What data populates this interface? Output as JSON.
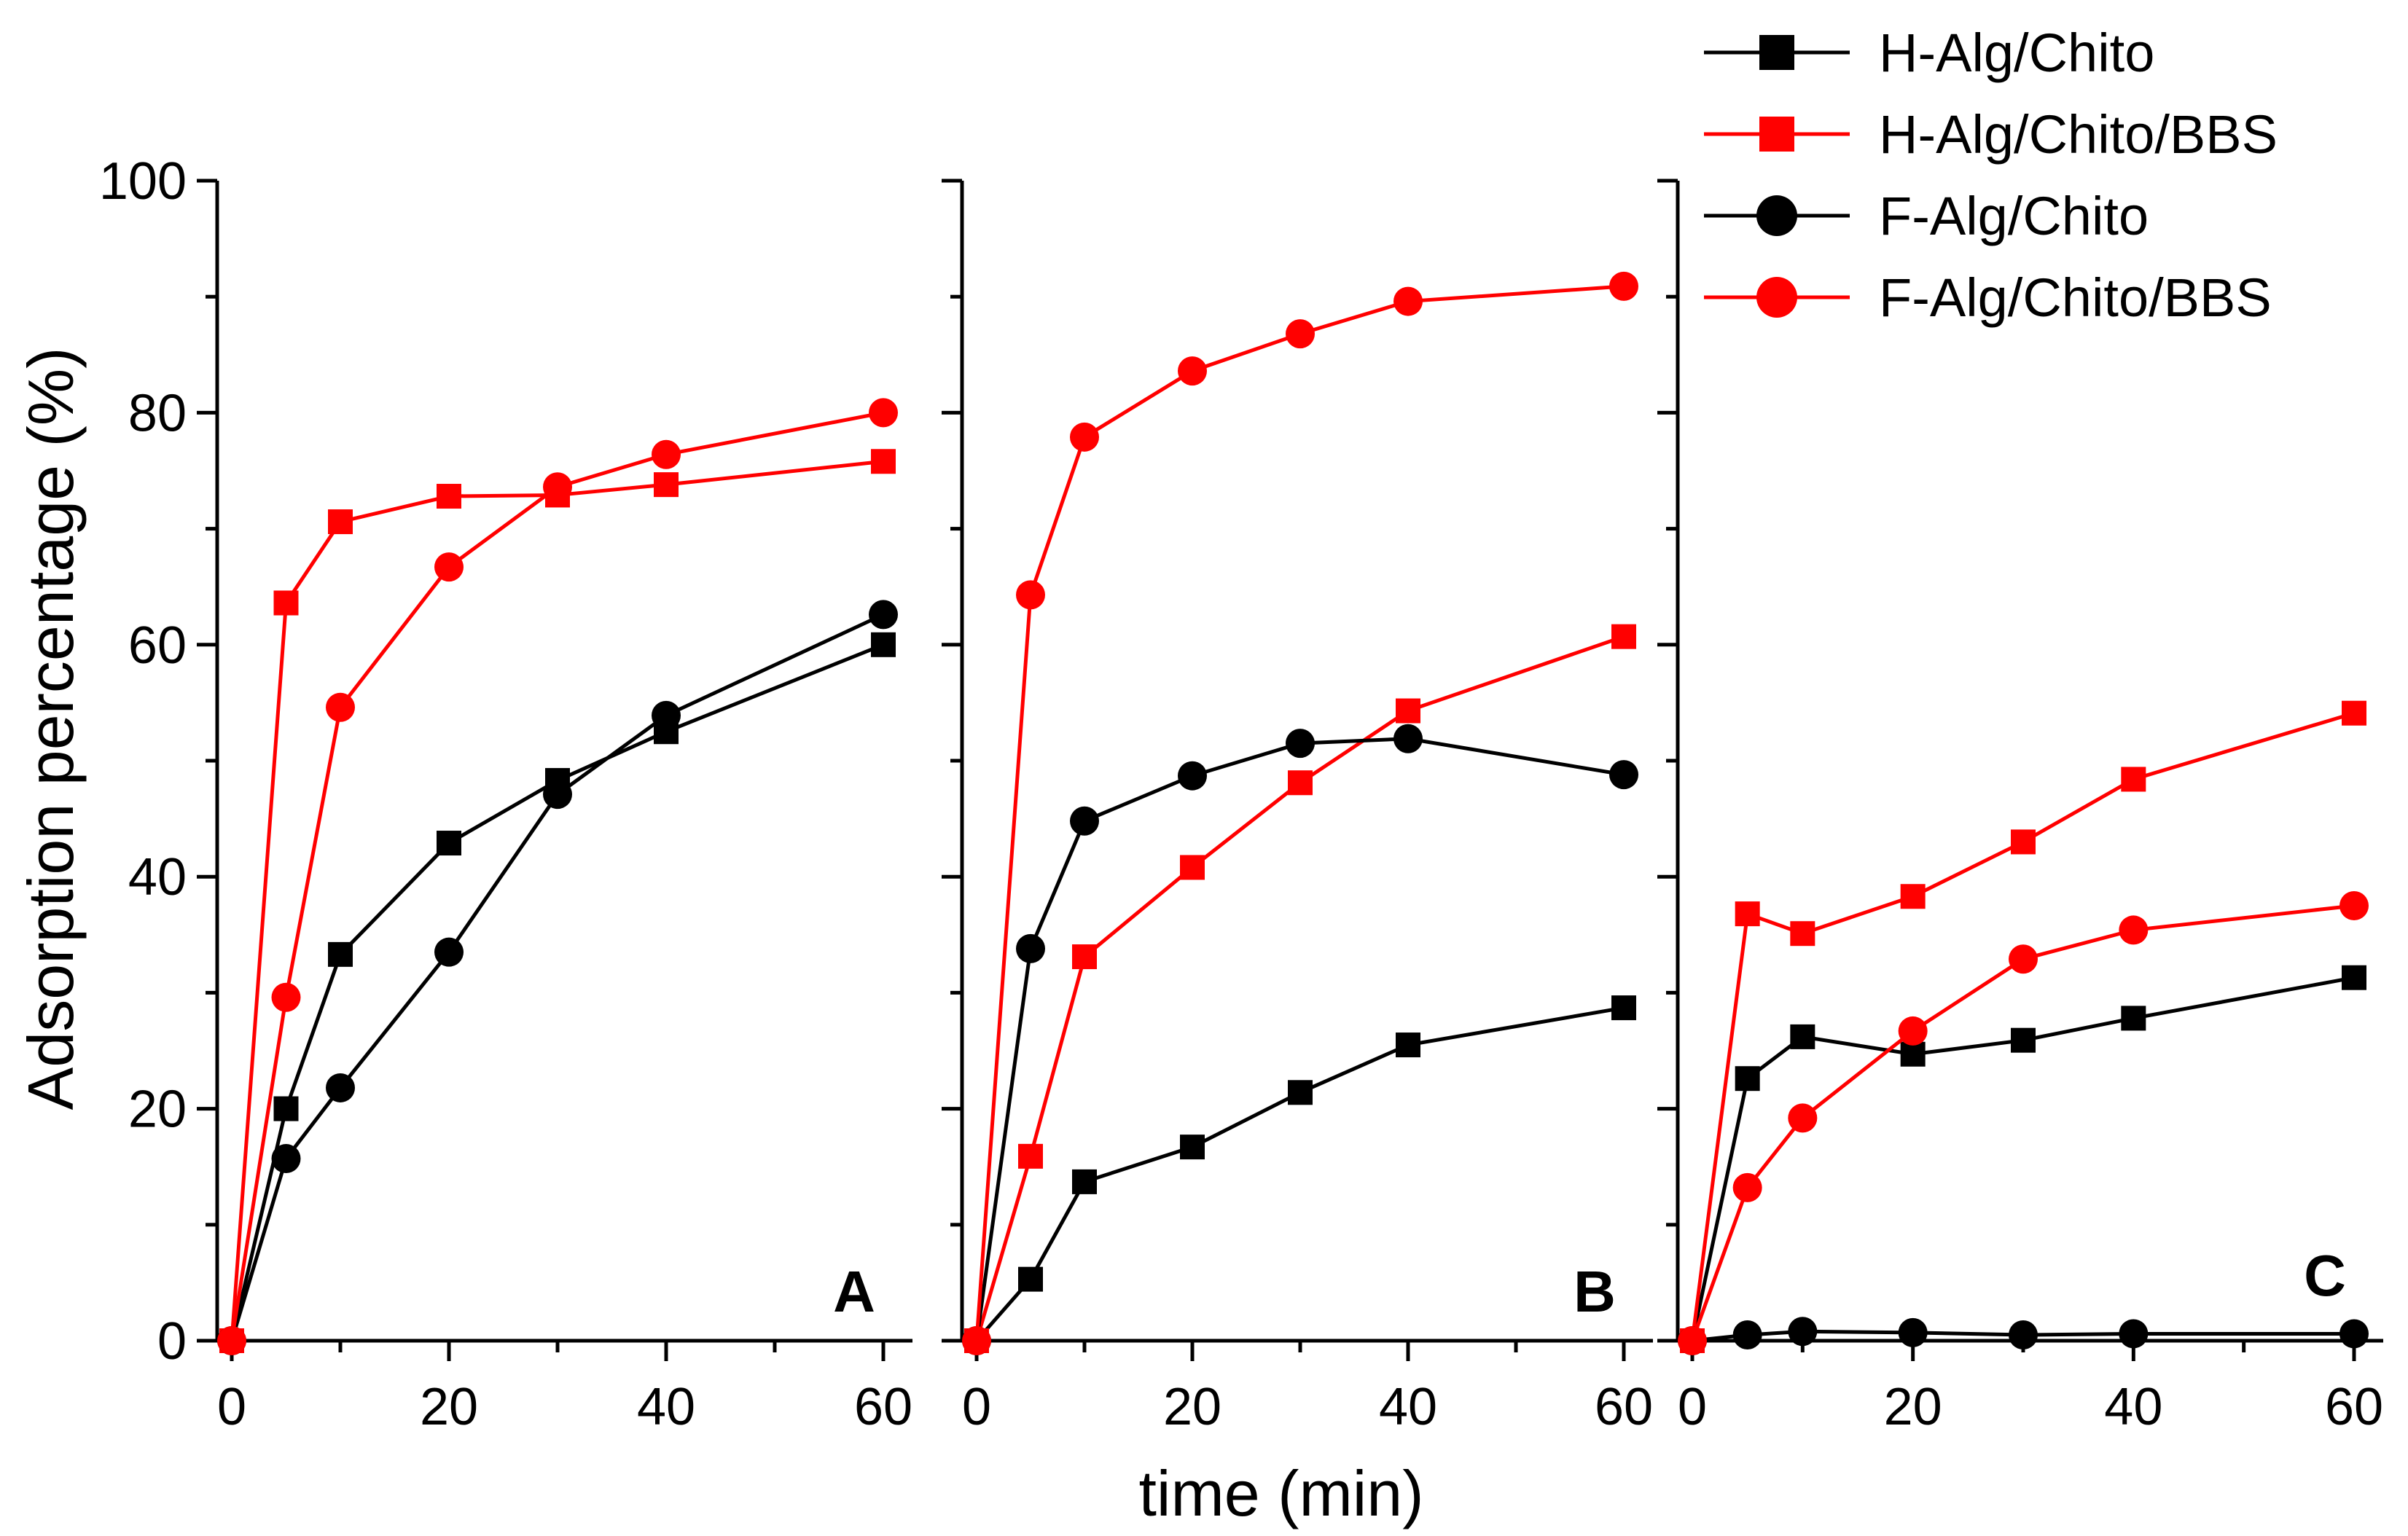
{
  "chart_data": {
    "type": "line",
    "ylabel": "Adsorption percentage (%)",
    "xlabel": "time (min)",
    "ylim": [
      0,
      100
    ],
    "yticks": [
      "0",
      "20",
      "40",
      "60",
      "80",
      "100"
    ],
    "xlim": [
      0,
      60
    ],
    "xticks": [
      "0",
      "20",
      "40",
      "60"
    ],
    "x": [
      0,
      5,
      10,
      20,
      30,
      40,
      60
    ],
    "colors": {
      "black": "#000000",
      "red": "#ff0000"
    },
    "legend": [
      {
        "label": "H-Alg/Chito",
        "color": "black",
        "marker": "square"
      },
      {
        "label": "H-Alg/Chito/BBS",
        "color": "red",
        "marker": "square"
      },
      {
        "label": "F-Alg/Chito",
        "color": "black",
        "marker": "circle"
      },
      {
        "label": "F-Alg/Chito/BBS",
        "color": "red",
        "marker": "circle"
      }
    ],
    "panels": [
      {
        "label": "A",
        "series": [
          {
            "name": "H-Alg/Chito",
            "values": [
              0,
              20,
              33.3,
              42.9,
              48.3,
              52.5,
              60
            ]
          },
          {
            "name": "H-Alg/Chito/BBS",
            "values": [
              0,
              63.6,
              70.6,
              72.8,
              72.9,
              73.8,
              75.8
            ]
          },
          {
            "name": "F-Alg/Chito",
            "values": [
              0,
              15.7,
              21.8,
              33.5,
              47.1,
              53.9,
              62.6
            ]
          },
          {
            "name": "F-Alg/Chito/BBS",
            "values": [
              0,
              29.6,
              54.6,
              66.7,
              73.6,
              76.4,
              80
            ]
          }
        ]
      },
      {
        "label": "B",
        "series": [
          {
            "name": "H-Alg/Chito",
            "values": [
              0,
              5.3,
              13.7,
              16.7,
              21.4,
              25.5,
              28.7
            ]
          },
          {
            "name": "H-Alg/Chito/BBS",
            "values": [
              0,
              15.9,
              33.1,
              40.8,
              48.1,
              54.3,
              60.7
            ]
          },
          {
            "name": "F-Alg/Chito",
            "values": [
              0,
              33.8,
              44.8,
              48.7,
              51.5,
              51.9,
              48.8
            ]
          },
          {
            "name": "F-Alg/Chito/BBS",
            "values": [
              0,
              64.3,
              77.9,
              83.6,
              86.8,
              89.6,
              90.9
            ]
          }
        ]
      },
      {
        "label": "C",
        "series": [
          {
            "name": "H-Alg/Chito",
            "values": [
              0,
              22.6,
              26.2,
              24.7,
              25.9,
              27.8,
              31.3
            ]
          },
          {
            "name": "H-Alg/Chito/BBS",
            "values": [
              0,
              36.8,
              35.1,
              38.3,
              43,
              48.4,
              54.1
            ]
          },
          {
            "name": "F-Alg/Chito",
            "values": [
              0,
              0.5,
              0.8,
              0.7,
              0.5,
              0.6,
              0.6
            ]
          },
          {
            "name": "F-Alg/Chito/BBS",
            "values": [
              0,
              13.2,
              19.2,
              26.7,
              32.9,
              35.4,
              37.5
            ]
          }
        ]
      }
    ]
  }
}
